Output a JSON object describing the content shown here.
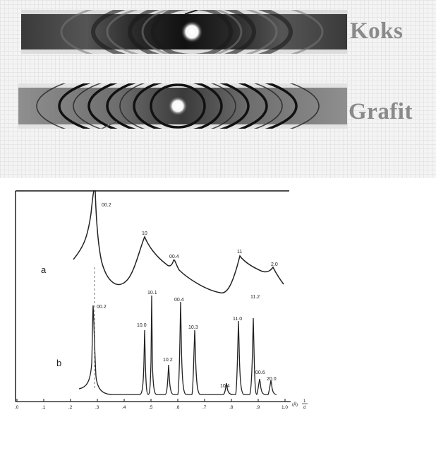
{
  "film_labels": {
    "koks": "Koks",
    "grafit": "Grafit"
  },
  "diagram": {
    "curve_a_label": "a",
    "curve_b_label": "b",
    "peaks_a": [
      "00.2",
      "10",
      "00.4",
      "11",
      "2.0"
    ],
    "peaks_b": [
      "00.2",
      "10.0",
      "10.1",
      "10.2",
      "00.4",
      "10.3",
      "10.4",
      "11.0",
      "11.2",
      "00.6",
      "20.0"
    ],
    "x_ticks": [
      ".0",
      ".1",
      ".2",
      ".3",
      ".4",
      ".5",
      ".6",
      ".7",
      ".8",
      ".9",
      "1.0"
    ],
    "x_unit_num": "1",
    "x_unit_den": "d",
    "x_unit_prefix": "(Å)"
  }
}
